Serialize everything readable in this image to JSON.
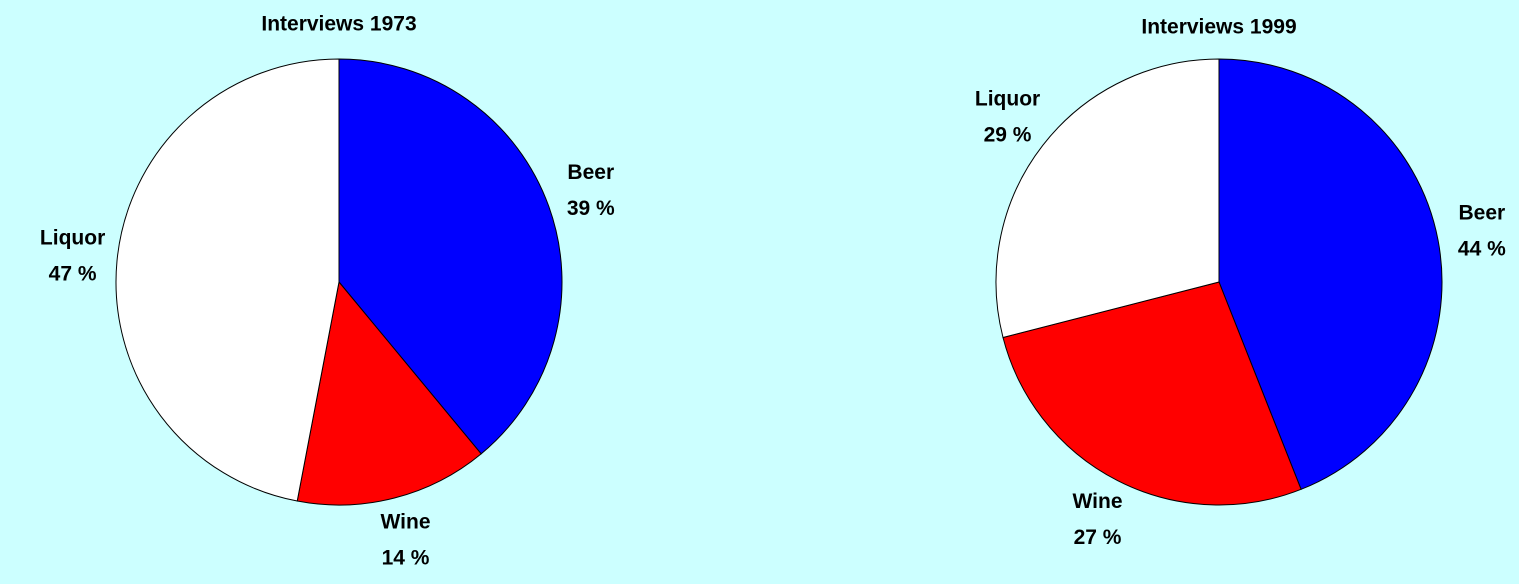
{
  "chart_data": [
    {
      "type": "pie",
      "title": "Interviews 1973",
      "categories": [
        "Beer",
        "Wine",
        "Liquor"
      ],
      "values": [
        39,
        14,
        47
      ],
      "value_labels": [
        "39 %",
        "14 %",
        "47 %"
      ],
      "colors": [
        "#0000ff",
        "#ff0000",
        "#ffffff"
      ]
    },
    {
      "type": "pie",
      "title": "Interviews 1999",
      "categories": [
        "Beer",
        "Wine",
        "Liquor"
      ],
      "values": [
        44,
        27,
        29
      ],
      "value_labels": [
        "44 %",
        "27 %",
        "29 %"
      ],
      "colors": [
        "#0000ff",
        "#ff0000",
        "#ffffff"
      ]
    }
  ]
}
